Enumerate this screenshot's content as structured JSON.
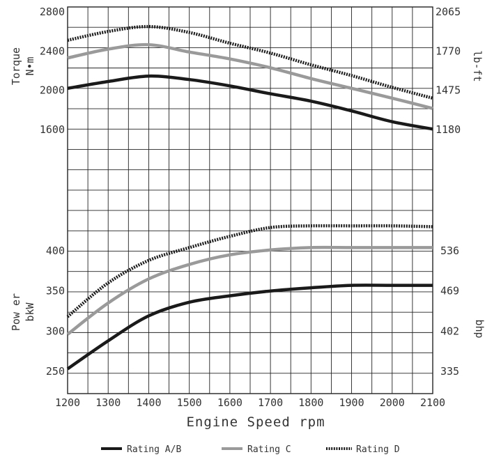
{
  "chart_data": {
    "type": "line",
    "xlabel": "Engine Speed rpm",
    "x_ticks": [
      "1200",
      "1300",
      "1400",
      "1500",
      "1600",
      "1700",
      "1800",
      "1900",
      "2000",
      "2100"
    ],
    "xlim": [
      1200,
      2100
    ],
    "colors": {
      "rating_ab": "#1a1a1a",
      "rating_c": "#9a9a9a",
      "rating_d": "#1a1a1a"
    },
    "torque": {
      "left_label_line1": "Torque",
      "left_label_line2": "N•m",
      "right_label": "lb-ft",
      "ylim": [
        1600,
        2800
      ],
      "left_ticks": [
        {
          "value": 1600,
          "label": "1600"
        },
        {
          "value": 2000,
          "label": "2000"
        },
        {
          "value": 2400,
          "label": "2400"
        },
        {
          "value": 2800,
          "label": "2800"
        }
      ],
      "right_ticks": [
        {
          "value": 1600,
          "label": "1180"
        },
        {
          "value": 2000,
          "label": "1475"
        },
        {
          "value": 2400,
          "label": "1770"
        },
        {
          "value": 2800,
          "label": "2065"
        }
      ],
      "series": [
        {
          "name": "Rating A/B",
          "style": "solid-dark",
          "x": [
            1200,
            1300,
            1400,
            1500,
            1600,
            1700,
            1800,
            1900,
            2000,
            2100
          ],
          "y": [
            2020,
            2090,
            2145,
            2110,
            2045,
            1965,
            1890,
            1790,
            1680,
            1605
          ]
        },
        {
          "name": "Rating C",
          "style": "solid-gray",
          "x": [
            1200,
            1300,
            1400,
            1500,
            1600,
            1700,
            1800,
            1900,
            2000,
            2100
          ],
          "y": [
            2330,
            2420,
            2465,
            2390,
            2320,
            2230,
            2120,
            2020,
            1920,
            1815
          ]
        },
        {
          "name": "Rating D",
          "style": "dotted",
          "x": [
            1200,
            1300,
            1400,
            1500,
            1600,
            1700,
            1800,
            1900,
            2000,
            2100
          ],
          "y": [
            2510,
            2600,
            2650,
            2590,
            2480,
            2380,
            2260,
            2150,
            2030,
            1920
          ]
        }
      ]
    },
    "power": {
      "left_label_line1": "Pow er",
      "left_label_line2": "bkW",
      "right_label": "bhp",
      "ylim": [
        235,
        470
      ],
      "left_ticks": [
        {
          "value": 250,
          "label": "250"
        },
        {
          "value": 300,
          "label": "300"
        },
        {
          "value": 350,
          "label": "350"
        },
        {
          "value": 400,
          "label": "400"
        }
      ],
      "right_ticks": [
        {
          "value": 250,
          "label": "335"
        },
        {
          "value": 300,
          "label": "402"
        },
        {
          "value": 350,
          "label": "469"
        },
        {
          "value": 400,
          "label": "536"
        }
      ],
      "series": [
        {
          "name": "Rating A/B",
          "style": "solid-dark",
          "x": [
            1200,
            1300,
            1400,
            1500,
            1600,
            1700,
            1800,
            1900,
            2000,
            2100
          ],
          "y": [
            253,
            288,
            319,
            336,
            344,
            350,
            354,
            357,
            357,
            357
          ]
        },
        {
          "name": "Rating C",
          "style": "solid-gray",
          "x": [
            1200,
            1300,
            1400,
            1500,
            1600,
            1700,
            1800,
            1900,
            2000,
            2100
          ],
          "y": [
            296,
            335,
            365,
            383,
            395,
            401,
            404,
            404,
            404,
            404
          ]
        },
        {
          "name": "Rating D",
          "style": "dotted",
          "x": [
            1200,
            1300,
            1400,
            1500,
            1600,
            1700,
            1800,
            1900,
            2000,
            2100
          ],
          "y": [
            318,
            360,
            388,
            404,
            418,
            429,
            431,
            431,
            431,
            430
          ]
        }
      ]
    },
    "legend": [
      {
        "label": "Rating A/B",
        "style": "solid-dark"
      },
      {
        "label": "Rating C",
        "style": "solid-gray"
      },
      {
        "label": "Rating D",
        "style": "dotted"
      }
    ],
    "grid": true
  }
}
